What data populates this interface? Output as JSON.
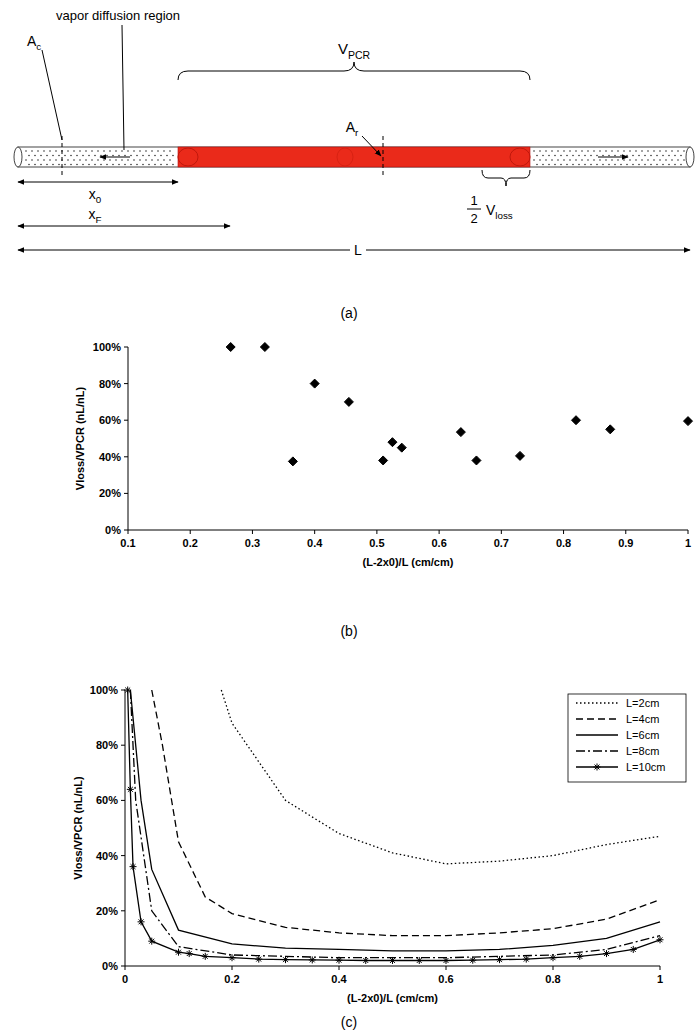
{
  "panels": [
    "(a)",
    "(b)",
    "(c)"
  ],
  "diagram": {
    "vapor_label": "vapor diffusion region",
    "A_c": {
      "text": "A",
      "sub": "c"
    },
    "A_r": {
      "text": "A",
      "sub": "r"
    },
    "x0": {
      "text": "x",
      "sub": "0"
    },
    "xF": {
      "text": "x",
      "sub": "F"
    },
    "L": "L",
    "V_PCR": {
      "text": "V",
      "sub": "PCR"
    },
    "V_loss": {
      "numerator": "1",
      "denominator": "2",
      "text": "V",
      "sub": "loss"
    }
  },
  "chart_data": [
    {
      "type": "scatter",
      "xlabel": "(L-2x0)/L (cm/cm)",
      "ylabel": "Vloss/VPCR (nL/nL)",
      "xlim": [
        0.1,
        1
      ],
      "ylim": [
        0,
        100
      ],
      "xticks": [
        0.1,
        0.2,
        0.3,
        0.4,
        0.5,
        0.6,
        0.7,
        0.8,
        0.9,
        1
      ],
      "yticks": [
        {
          "value": 0,
          "label": "0%"
        },
        {
          "value": 20,
          "label": "20%"
        },
        {
          "value": 40,
          "label": "40%"
        },
        {
          "value": 60,
          "label": "60%"
        },
        {
          "value": 80,
          "label": "80%"
        },
        {
          "value": 100,
          "label": "100%"
        }
      ],
      "series": [
        {
          "color": "#000000",
          "marker": "diamond",
          "x": [
            0.265,
            0.32,
            0.4,
            0.455,
            0.365,
            0.51,
            0.525,
            0.54,
            0.635,
            0.66,
            0.73,
            0.82,
            0.875,
            1.0
          ],
          "values": [
            100,
            100,
            80,
            70,
            37.5,
            38,
            48,
            45,
            53.5,
            38,
            40.5,
            60,
            55,
            59.5
          ]
        }
      ]
    },
    {
      "type": "line",
      "xlabel": "(L-2x0)/L (cm/cm)",
      "ylabel": "Vloss/VPCR (nL/nL)",
      "xlim": [
        0,
        1
      ],
      "ylim": [
        0,
        100
      ],
      "xticks": [
        0,
        0.2,
        0.4,
        0.6,
        0.8,
        1
      ],
      "yticks": [
        {
          "value": 0,
          "label": "0%"
        },
        {
          "value": 20,
          "label": "20%"
        },
        {
          "value": 40,
          "label": "40%"
        },
        {
          "value": 60,
          "label": "60%"
        },
        {
          "value": 80,
          "label": "80%"
        },
        {
          "value": 100,
          "label": "100%"
        }
      ],
      "legend": "top-right",
      "series": [
        {
          "name": "L=2cm",
          "color": "#000000",
          "line_style": "dotted",
          "x": [
            0.18,
            0.2,
            0.3,
            0.4,
            0.5,
            0.6,
            0.7,
            0.8,
            0.9,
            1
          ],
          "values": [
            100,
            88,
            60,
            48,
            41,
            37,
            38,
            40,
            44,
            47
          ]
        },
        {
          "name": "L=4cm",
          "color": "#000000",
          "line_style": "dashed",
          "x": [
            0.05,
            0.07,
            0.1,
            0.15,
            0.2,
            0.3,
            0.4,
            0.5,
            0.6,
            0.7,
            0.8,
            0.9,
            1
          ],
          "values": [
            100,
            80,
            45,
            25,
            19,
            14,
            12,
            11,
            11,
            12,
            13.5,
            17,
            24
          ]
        },
        {
          "name": "L=6cm",
          "color": "#000000",
          "line_style": "solid",
          "x": [
            0.01,
            0.03,
            0.05,
            0.1,
            0.2,
            0.3,
            0.4,
            0.5,
            0.6,
            0.7,
            0.8,
            0.9,
            1
          ],
          "values": [
            100,
            60,
            35,
            13,
            8,
            6.5,
            6,
            5.5,
            5.5,
            6,
            7.5,
            10,
            16
          ]
        },
        {
          "name": "L=8cm",
          "color": "#000000",
          "line_style": "dashdot",
          "x": [
            0.01,
            0.02,
            0.05,
            0.1,
            0.2,
            0.4,
            0.6,
            0.8,
            0.9,
            1
          ],
          "values": [
            100,
            60,
            20,
            7,
            4,
            3,
            3,
            4,
            6,
            11
          ]
        },
        {
          "name": "L=10cm",
          "color": "#000000",
          "line_style": "solid",
          "marker": "star",
          "x": [
            0.005,
            0.01,
            0.015,
            0.03,
            0.05,
            0.1,
            0.12,
            0.15,
            0.2,
            0.25,
            0.3,
            0.35,
            0.4,
            0.45,
            0.5,
            0.55,
            0.6,
            0.65,
            0.7,
            0.75,
            0.8,
            0.85,
            0.9,
            0.95,
            1
          ],
          "values": [
            100,
            64,
            36,
            16,
            9,
            5,
            4.5,
            3.5,
            3,
            2.5,
            2.3,
            2.2,
            2.1,
            2,
            2,
            2,
            2,
            2.1,
            2.3,
            2.5,
            3,
            3.5,
            4.5,
            6,
            9.5
          ]
        }
      ]
    }
  ]
}
